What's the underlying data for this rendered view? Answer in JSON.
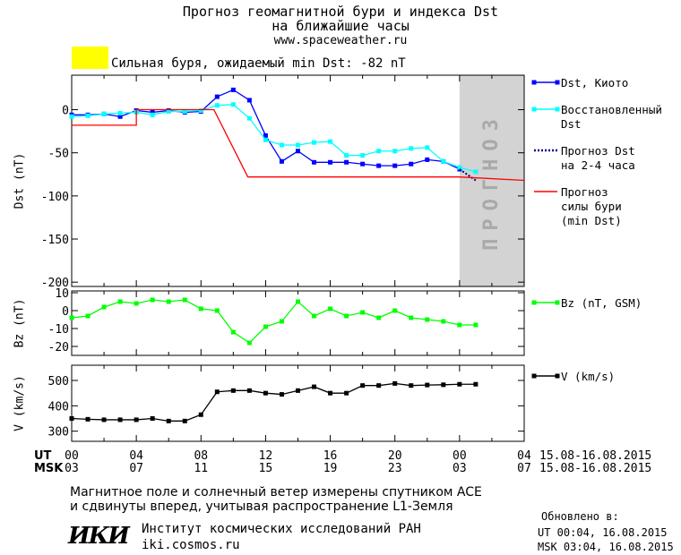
{
  "header": {
    "title_line1": "Прогноз геомагнитной бури и индекса Dst",
    "title_line2": "на ближайшие часы",
    "website": "www.spaceweather.ru",
    "storm_level_color": "#ffff00",
    "storm_text": "Сильная буря, ожидаемый min Dst: -82 nT"
  },
  "chart_data": [
    {
      "type": "line",
      "ylabel": "Dst (nT)",
      "ylim": [
        -205,
        40
      ],
      "yticks": [
        0,
        -50,
        -100,
        -150,
        -200
      ],
      "forecast_band": {
        "x_from": 24,
        "x_to": 28,
        "label": "ПРОГНОЗ",
        "color": "#d3d3d3"
      },
      "series": [
        {
          "name": "Dst, Киото",
          "color": "#0000ff",
          "style": "solid-square",
          "x": [
            0,
            1,
            2,
            3,
            4,
            5,
            6,
            7,
            8,
            9,
            10,
            11,
            12,
            13,
            14,
            15,
            16,
            17,
            18,
            19,
            20,
            21,
            22,
            23,
            24
          ],
          "y": [
            -6,
            -6,
            -5,
            -8,
            -1,
            -3,
            -1,
            -3,
            -2,
            15,
            23,
            11,
            -30,
            -60,
            -48,
            -61,
            -61,
            -61,
            -63,
            -65,
            -65,
            -63,
            -58,
            -60,
            -69
          ]
        },
        {
          "name": "Восстановленный Dst",
          "color": "#00ffff",
          "style": "solid-square",
          "x": [
            0,
            1,
            2,
            3,
            4,
            5,
            6,
            7,
            8,
            9,
            10,
            11,
            12,
            13,
            14,
            15,
            16,
            17,
            18,
            19,
            20,
            21,
            22,
            23,
            24,
            25
          ],
          "y": [
            -8,
            -7,
            -5,
            -4,
            -3,
            -6,
            -2,
            -2,
            -1,
            5,
            6,
            -10,
            -35,
            -41,
            -41,
            -38,
            -37,
            -53,
            -53,
            -48,
            -48,
            -45,
            -44,
            -60,
            -67,
            -72
          ]
        },
        {
          "name": "Прогноз Dst на 2-4 часа",
          "color": "#00008b",
          "style": "dotted",
          "x": [
            24,
            25
          ],
          "y": [
            -69,
            -82
          ]
        },
        {
          "name": "Прогноз силы бури (min Dst)",
          "color": "#ff0000",
          "style": "solid",
          "x": [
            0,
            4,
            4,
            8.8,
            10.9,
            24,
            28
          ],
          "y": [
            -18,
            -18,
            0,
            0,
            -78,
            -78,
            -82
          ]
        }
      ],
      "legend": [
        {
          "lines": [
            "Dst, Киото"
          ],
          "color": "#0000ff",
          "style": "solid-square"
        },
        {
          "lines": [
            "Восстановленный",
            "Dst"
          ],
          "color": "#00ffff",
          "style": "solid-square"
        },
        {
          "lines": [
            "Прогноз Dst",
            "на 2-4 часа"
          ],
          "color": "#00008b",
          "style": "dotted"
        },
        {
          "lines": [
            "Прогноз",
            "силы бури",
            "(min Dst)"
          ],
          "color": "#ff0000",
          "style": "solid"
        }
      ]
    },
    {
      "type": "line",
      "ylabel": "Bz (nT)",
      "ylim": [
        -25,
        11
      ],
      "yticks": [
        10,
        0,
        -10,
        -20
      ],
      "series": [
        {
          "name": "Bz (nT, GSM)",
          "color": "#00ff00",
          "style": "solid-square",
          "x": [
            0,
            1,
            2,
            3,
            4,
            5,
            6,
            7,
            8,
            9,
            10,
            11,
            12,
            13,
            14,
            15,
            16,
            17,
            18,
            19,
            20,
            21,
            22,
            23,
            24,
            25
          ],
          "y": [
            -4,
            -3,
            2,
            5,
            4,
            6,
            5,
            6,
            1,
            0,
            -12,
            -18,
            -9,
            -6,
            5,
            -3,
            1,
            -3,
            -1,
            -4,
            0,
            -4,
            -5,
            -6,
            -8,
            -8
          ]
        }
      ],
      "legend": [
        {
          "lines": [
            "Bz (nT, GSM)"
          ],
          "color": "#00ff00",
          "style": "solid-square"
        }
      ]
    },
    {
      "type": "line",
      "ylabel": "V (km/s)",
      "ylim": [
        260,
        560
      ],
      "yticks": [
        500,
        400,
        300
      ],
      "series": [
        {
          "name": "V (km/s)",
          "color": "#000000",
          "style": "solid-square",
          "x": [
            0,
            1,
            2,
            3,
            4,
            5,
            6,
            7,
            8,
            9,
            10,
            11,
            12,
            13,
            14,
            15,
            16,
            17,
            18,
            19,
            20,
            21,
            22,
            23,
            24,
            25
          ],
          "y": [
            350,
            347,
            345,
            345,
            345,
            350,
            340,
            340,
            365,
            455,
            460,
            460,
            450,
            445,
            460,
            475,
            450,
            450,
            480,
            480,
            488,
            480,
            482,
            483,
            485,
            485
          ]
        }
      ],
      "legend": [
        {
          "lines": [
            "V (km/s)"
          ],
          "color": "#000000",
          "style": "solid-square"
        }
      ]
    }
  ],
  "time_axis": {
    "x_range": [
      0,
      28
    ],
    "tick_step_hours": 4,
    "ut_label": "UT",
    "msk_label": "MSK",
    "ut_ticks": [
      "00",
      "04",
      "08",
      "12",
      "16",
      "20",
      "00",
      "04"
    ],
    "msk_ticks": [
      "03",
      "07",
      "11",
      "15",
      "19",
      "23",
      "03",
      "07"
    ],
    "ut_range_text": "15.08-16.08.2015",
    "msk_range_text": "15.08-16.08.2015"
  },
  "footer": {
    "note_line1": "Магнитное поле и солнечный ветер измерены спутником ACE",
    "note_line2": "и сдвинуты вперед, учитывая распространение L1-Земля",
    "logo_text": "ИКИ",
    "institute": "Институт космических исследований РАН",
    "institute_site": "iki.cosmos.ru",
    "updated_label": "Обновлено в:",
    "updated_ut": "UT  00:04, 16.08.2015",
    "updated_msk": "MSK 03:04, 16.08.2015"
  }
}
